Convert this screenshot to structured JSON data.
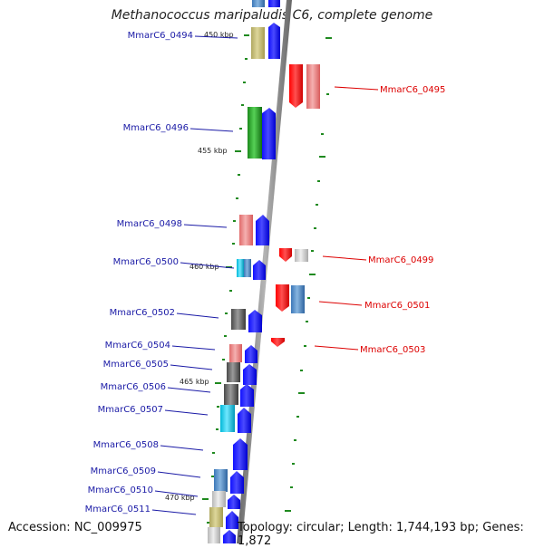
{
  "title": "Methanococcus maripaludis C6, complete genome",
  "accession": "Accession: NC_009975",
  "summary": "Topology: circular; Length: 1,744,193 bp; Genes: 1,872",
  "colors": {
    "backbone": "#8a8a8a",
    "forward_gene_label": "#1a1aa6",
    "reverse_gene_label": "#dd0000",
    "tick": "#1f8a1f"
  },
  "scale_labels": [
    "450 kbp",
    "455 kbp",
    "460 kbp",
    "465 kbp",
    "470 kbp"
  ],
  "genes_forward": [
    "MmarC6_0494",
    "MmarC6_0496",
    "MmarC6_0498",
    "MmarC6_0500",
    "MmarC6_0502",
    "MmarC6_0504",
    "MmarC6_0505",
    "MmarC6_0506",
    "MmarC6_0507",
    "MmarC6_0508",
    "MmarC6_0509",
    "MmarC6_0510",
    "MmarC6_0511"
  ],
  "genes_reverse": [
    "MmarC6_0495",
    "MmarC6_0499",
    "MmarC6_0501",
    "MmarC6_0503"
  ]
}
